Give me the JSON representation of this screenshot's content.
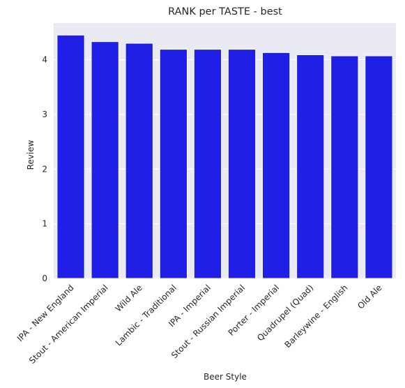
{
  "chart_data": {
    "type": "bar",
    "title": "RANK per TASTE - best",
    "xlabel": "Beer Style",
    "ylabel": "Review",
    "categories": [
      "IPA - New England",
      "Stout - American Imperial",
      "Wild Ale",
      "Lambic - Traditional",
      "IPA - Imperial",
      "Stout - Russian Imperial",
      "Porter - Imperial",
      "Quadrupel (Quad)",
      "Barleywine - English",
      "Old Ale"
    ],
    "values": [
      4.45,
      4.33,
      4.3,
      4.19,
      4.19,
      4.19,
      4.13,
      4.09,
      4.07,
      4.07
    ],
    "ylim": [
      0,
      4.67
    ],
    "yticks": [
      0,
      1,
      2,
      3,
      4
    ],
    "bar_color": "#1f1fe6",
    "plot_background": "#eaeaf2",
    "grid": true
  }
}
